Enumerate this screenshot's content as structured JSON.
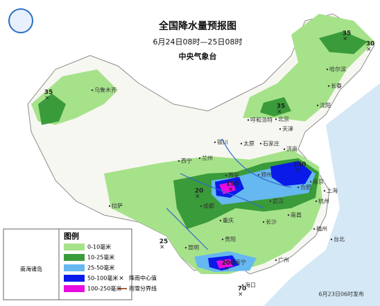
{
  "header": {
    "title": "全国降水量预报图",
    "period": "6月24日08时—25日08时",
    "issuer": "中央气象台"
  },
  "legend": {
    "title": "图例",
    "items": [
      {
        "label": "0-10毫米",
        "color": "#a6e28a"
      },
      {
        "label": "10-25毫米",
        "color": "#3a9b3a"
      },
      {
        "label": "25-50毫米",
        "color": "#66b8f0"
      },
      {
        "label": "50-100毫米",
        "color": "#0a1ae8"
      },
      {
        "label": "100-250毫米",
        "color": "#e80ae0"
      }
    ],
    "center_label": "降雨中心值",
    "boundary_label": "雨雪分界线"
  },
  "cities": [
    "乌鲁木齐",
    "哈尔滨",
    "长春",
    "沈阳",
    "呼和浩特",
    "北京",
    "天津",
    "石家庄",
    "太原",
    "济南",
    "银川",
    "兰州",
    "西宁",
    "西安",
    "郑州",
    "合肥",
    "南京",
    "上海",
    "杭州",
    "武汉",
    "成都",
    "重庆",
    "长沙",
    "南昌",
    "福州",
    "贵阳",
    "昆明",
    "南宁",
    "广州",
    "拉萨",
    "海口",
    "台北"
  ],
  "rain_centers": [
    35,
    35,
    30,
    35,
    20,
    150,
    130,
    25,
    200,
    70
  ],
  "inset_label": "南海诸岛",
  "issue_time": "6月23日06时发布"
}
